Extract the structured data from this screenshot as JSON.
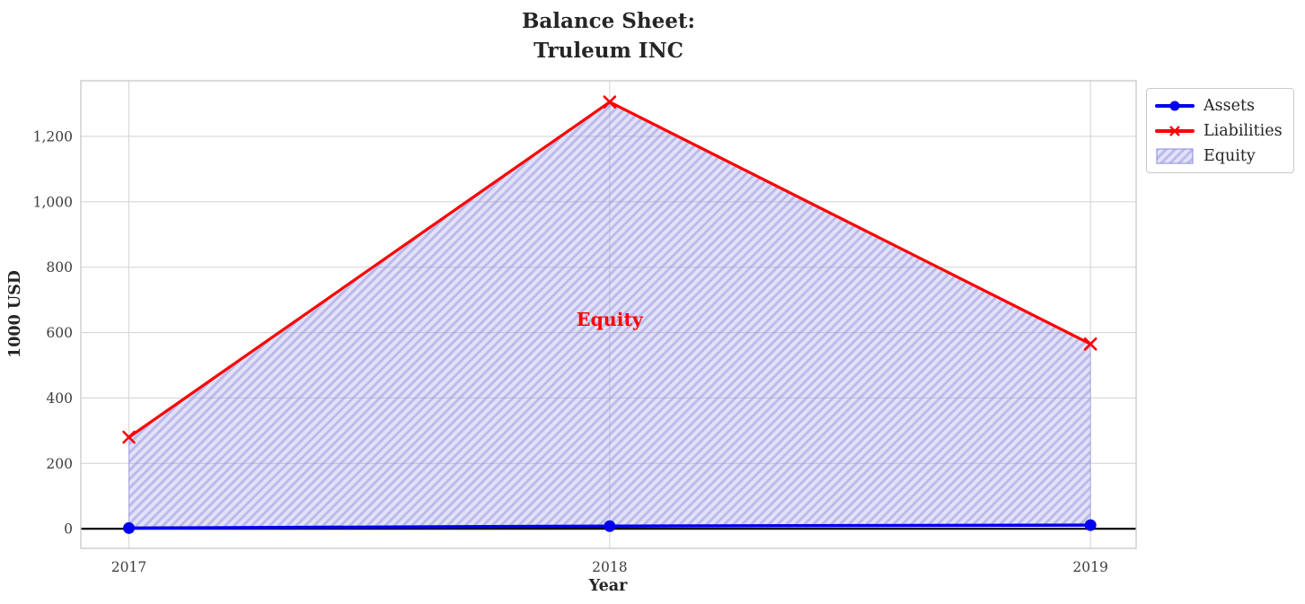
{
  "chart_data": {
    "type": "line",
    "title": "Balance Sheet:\nTruleum INC",
    "xlabel": "Year",
    "ylabel": "1000 USD",
    "x": [
      2017,
      2018,
      2019
    ],
    "xtick_labels": [
      "2017",
      "2018",
      "2019"
    ],
    "yticks": [
      0,
      200,
      400,
      600,
      800,
      1000,
      1200
    ],
    "ytick_labels": [
      "0",
      "200",
      "400",
      "600",
      "800",
      "1,000",
      "1,200"
    ],
    "xlim": [
      2016.9,
      2019.095
    ],
    "ylim": [
      -60,
      1370
    ],
    "grid": true,
    "zero_line": true,
    "series": [
      {
        "name": "Assets",
        "values": [
          2,
          8,
          11
        ],
        "color": "#0000ee",
        "marker": "circle",
        "line_width": 3.5
      },
      {
        "name": "Liabilities",
        "values": [
          280,
          1305,
          565
        ],
        "color": "#ff0000",
        "marker": "x",
        "line_width": 3.2
      }
    ],
    "area": {
      "name": "Equity",
      "between": [
        "Assets",
        "Liabilities"
      ],
      "face_color": "#9898e2",
      "face_opacity": 0.28,
      "hatch_color": "#8a8ae0",
      "hatch": "/"
    },
    "annotation": {
      "text": "Equity",
      "x": 2018,
      "y": 640,
      "color": "#ff0000"
    },
    "legend": {
      "position": "outside-top-right",
      "entries": [
        {
          "label": "Assets",
          "swatch": "line-circle",
          "color": "#0000ee"
        },
        {
          "label": "Liabilities",
          "swatch": "line-x",
          "color": "#ff0000"
        },
        {
          "label": "Equity",
          "swatch": "hatch-patch",
          "color": "#9898e2",
          "edge_color": "#8888dd"
        }
      ]
    },
    "colors": {
      "grid": "#d7d7d7",
      "spine": "#c8c8c8",
      "tick_label": "#3d3d3d",
      "axis_label": "#262626",
      "zero_line": "#000000"
    }
  }
}
